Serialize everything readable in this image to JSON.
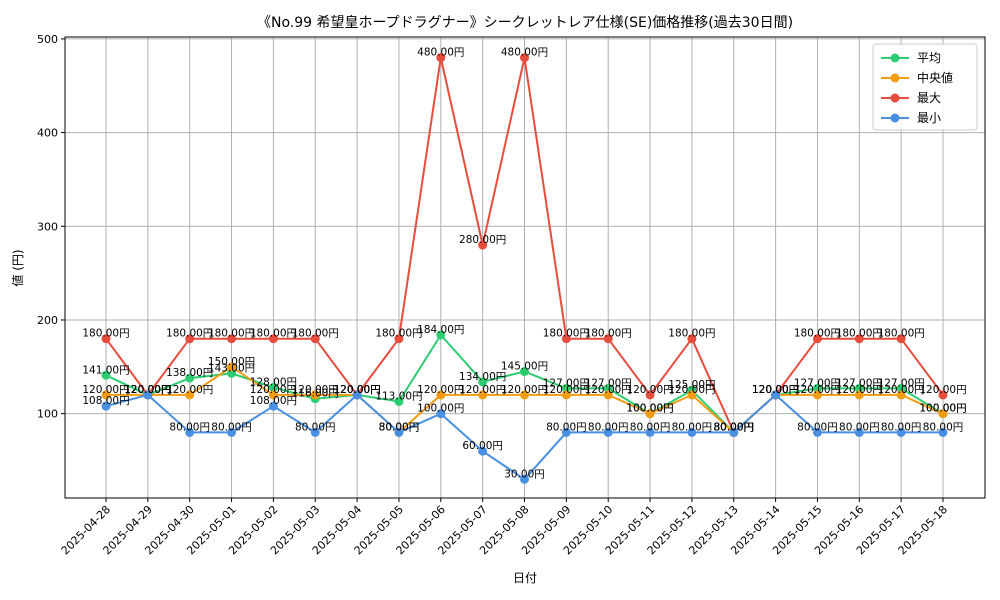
{
  "chart_data": {
    "type": "line",
    "title": "《No.99 希望皇ホープドラグナー》シークレットレア仕様(SE)価格推移(過去30日間)",
    "xlabel": "日付",
    "ylabel": "値 (円)",
    "ylim": [
      10,
      502
    ],
    "yticks": [
      100,
      200,
      300,
      400,
      500
    ],
    "grid": true,
    "legend_position": "top-right",
    "value_suffix": "円",
    "x": [
      "2025-04-28",
      "2025-04-29",
      "2025-04-30",
      "2025-05-01",
      "2025-05-02",
      "2025-05-03",
      "2025-05-04",
      "2025-05-05",
      "2025-05-06",
      "2025-05-07",
      "2025-05-08",
      "2025-05-09",
      "2025-05-10",
      "2025-05-11",
      "2025-05-12",
      "2025-05-13",
      "2025-05-14",
      "2025-05-15",
      "2025-05-16",
      "2025-05-17",
      "2025-05-18"
    ],
    "series": [
      {
        "name": "平均",
        "color": "#2ecc71",
        "values": [
          141,
          120,
          138,
          143,
          128,
          116,
          120,
          113,
          184,
          134,
          145,
          127,
          127,
          100,
          125,
          80,
          120,
          127,
          127,
          127,
          100
        ]
      },
      {
        "name": " 中央値",
        "color": "#f39c12",
        "values": [
          120,
          120,
          120,
          150,
          120,
          120,
          120,
          80,
          120,
          120,
          120,
          120,
          120,
          100,
          120,
          80,
          120,
          120,
          120,
          120,
          100
        ]
      },
      {
        "name": "最大",
        "color": "#e74c3c",
        "values": [
          180,
          120,
          180,
          180,
          180,
          180,
          120,
          180,
          480,
          280,
          480,
          180,
          180,
          120,
          180,
          80,
          120,
          180,
          180,
          180,
          120
        ]
      },
      {
        "name": "最小",
        "color": "#4a90e2",
        "values": [
          108,
          120,
          80,
          80,
          108,
          80,
          120,
          80,
          100,
          60,
          30,
          80,
          80,
          80,
          80,
          80,
          120,
          80,
          80,
          80,
          80
        ]
      }
    ]
  }
}
